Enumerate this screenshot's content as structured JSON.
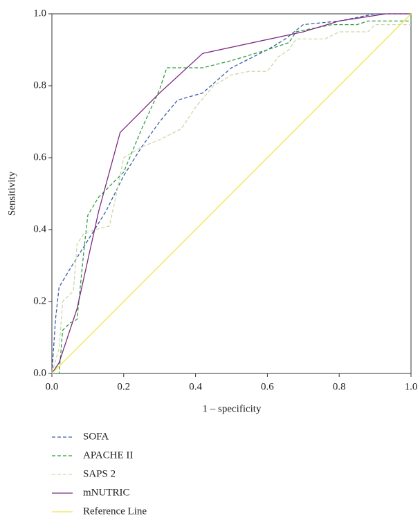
{
  "chart_data": {
    "type": "line",
    "xlabel": "1 – specificity",
    "ylabel": "Sensitivity",
    "xlim": [
      0,
      1
    ],
    "ylim": [
      0,
      1
    ],
    "xticks": [
      {
        "value": 0,
        "label": "0.0"
      },
      0.2,
      0.4,
      0.6,
      0.8,
      {
        "value": 1,
        "label": "1.0"
      }
    ],
    "yticks": [
      {
        "value": 0,
        "label": "0.0"
      },
      0.2,
      0.4,
      0.6,
      0.8,
      {
        "value": 1,
        "label": "1.0"
      }
    ],
    "legend": "bottom",
    "series": [
      {
        "name": "SOFA",
        "color": "#3b5ba8",
        "dash": true,
        "x": [
          0,
          0.01,
          0.02,
          0.05,
          0.1,
          0.15,
          0.2,
          0.25,
          0.3,
          0.35,
          0.42,
          0.5,
          0.6,
          0.65,
          0.7,
          0.8,
          0.9,
          1
        ],
        "values": [
          0,
          0.15,
          0.24,
          0.29,
          0.37,
          0.45,
          0.55,
          0.63,
          0.7,
          0.76,
          0.78,
          0.85,
          0.9,
          0.93,
          0.97,
          0.98,
          1,
          1
        ]
      },
      {
        "name": "APACHE II",
        "color": "#2e9e3e",
        "dash": true,
        "x": [
          0,
          0.02,
          0.03,
          0.05,
          0.07,
          0.09,
          0.1,
          0.13,
          0.2,
          0.25,
          0.3,
          0.32,
          0.42,
          0.5,
          0.6,
          0.66,
          0.68,
          0.78,
          0.85,
          0.88,
          1,
          1
        ],
        "values": [
          0,
          0,
          0.12,
          0.14,
          0.15,
          0.35,
          0.44,
          0.49,
          0.56,
          0.68,
          0.79,
          0.85,
          0.85,
          0.87,
          0.9,
          0.92,
          0.95,
          0.97,
          0.97,
          0.98,
          0.98,
          1
        ]
      },
      {
        "name": "SAPS 2",
        "color": "#c9d9a3",
        "dash": true,
        "x": [
          0,
          0.02,
          0.03,
          0.04,
          0.06,
          0.07,
          0.09,
          0.12,
          0.16,
          0.18,
          0.2,
          0.25,
          0.3,
          0.36,
          0.4,
          0.45,
          0.5,
          0.55,
          0.6,
          0.63,
          0.66,
          0.68,
          0.76,
          0.8,
          0.88,
          0.9,
          1
        ],
        "values": [
          0,
          0.07,
          0.2,
          0.21,
          0.23,
          0.36,
          0.39,
          0.4,
          0.41,
          0.5,
          0.6,
          0.63,
          0.65,
          0.68,
          0.74,
          0.8,
          0.83,
          0.84,
          0.84,
          0.88,
          0.9,
          0.93,
          0.93,
          0.95,
          0.95,
          0.97,
          0.97
        ]
      },
      {
        "name": "mNUTRIC",
        "color": "#7b2a7f",
        "dash": false,
        "x": [
          0,
          0.02,
          0.07,
          0.13,
          0.19,
          0.3,
          0.42,
          0.7,
          0.8,
          0.93,
          1
        ],
        "values": [
          0,
          0.03,
          0.18,
          0.45,
          0.67,
          0.78,
          0.89,
          0.95,
          0.98,
          1,
          1
        ]
      },
      {
        "name": "Reference Line",
        "color": "#f2e44a",
        "dash": false,
        "x": [
          0,
          1
        ],
        "values": [
          0,
          1
        ]
      }
    ]
  }
}
